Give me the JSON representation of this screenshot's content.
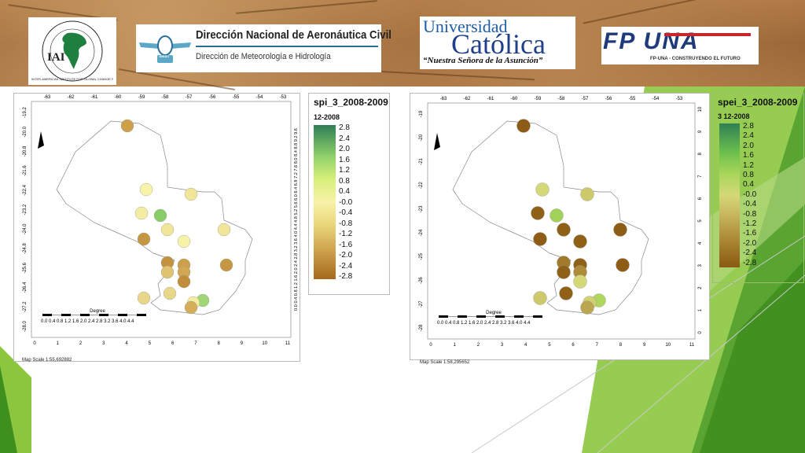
{
  "header": {
    "iai": {
      "letters": "IAI",
      "ring_text": "INTER-AMERICAN INSTITUTE FOR GLOBAL CHANGE RESEARCH"
    },
    "dinac": {
      "title": "Dirección Nacional de Aeronáutica Civil",
      "subtitle": "Dirección de Meteorología e Hidrología",
      "badge": "DINAC"
    },
    "ucat": {
      "line1": "Universidad",
      "line2": "Católica",
      "line3": "“Nuestra Señora de la Asunción”"
    },
    "fpuna": {
      "logo": "FP UNA",
      "tagline": "FP-UNA - CONSTRUYENDO EL FUTURO"
    }
  },
  "colors": {
    "green_dark": "#3f8f1f",
    "green_light": "#8cc63f",
    "legend_top": "#2f7f55",
    "legend_mid": "#f7f3a8",
    "legend_bottom": "#a56a1c"
  },
  "maps": [
    {
      "title": "spi_3_2008-2009",
      "subtitle": "12-2008",
      "legend_values": [
        "2.8",
        "2.4",
        "2.0",
        "1.6",
        "1.2",
        "0.8",
        "0.4",
        "-0.0",
        "-0.4",
        "-0.8",
        "-1.2",
        "-1.6",
        "-2.0",
        "-2.4",
        "-2.8"
      ],
      "top_ticks": [
        "-63",
        "-62",
        "-61",
        "-60",
        "-59",
        "-58",
        "-57",
        "-56",
        "-55",
        "-54",
        "-53"
      ],
      "left_ticks": [
        "-19.2",
        "-20.0",
        "-20.8",
        "-21.6",
        "-22.4",
        "-23.2",
        "-24.0",
        "-24.8",
        "-25.6",
        "-26.4",
        "-27.2",
        "-28.0"
      ],
      "right_ticks": "0.0 0.4 0.8 1.2 1.6 2.0 2.4 2.8 3.2 3.6 4.0 4.4 4.8 5.2 5.6 6.0 6.4 6.8 7.2 7.6 8.0 8.4 8.8 9.2 9.6",
      "bottom_ticks": [
        "0",
        "1",
        "2",
        "3",
        "4",
        "5",
        "6",
        "7",
        "8",
        "9",
        "10",
        "11"
      ],
      "scale_label": "Degree",
      "scale_ticks": "0.0 0.4 0.8 1.2 1.6 2.0 2.4 2.8 3.2 3.6 4.0 4.4",
      "map_scale": "Map Scale 1:55,692882",
      "points": [
        {
          "lon": -59.6,
          "lat": -19.5,
          "v": -1.6
        },
        {
          "lon": -58.8,
          "lat": -22.2,
          "v": -0.4
        },
        {
          "lon": -56.9,
          "lat": -22.4,
          "v": -0.6
        },
        {
          "lon": -59.0,
          "lat": -23.2,
          "v": -0.5
        },
        {
          "lon": -58.2,
          "lat": -23.3,
          "v": 0.9
        },
        {
          "lon": -57.9,
          "lat": -23.9,
          "v": -0.6
        },
        {
          "lon": -55.5,
          "lat": -23.9,
          "v": -0.6
        },
        {
          "lon": -58.9,
          "lat": -24.3,
          "v": -1.8
        },
        {
          "lon": -57.2,
          "lat": -24.4,
          "v": -0.4
        },
        {
          "lon": -57.9,
          "lat": -25.3,
          "v": -1.9
        },
        {
          "lon": -57.2,
          "lat": -25.4,
          "v": -1.6
        },
        {
          "lon": -57.9,
          "lat": -25.7,
          "v": -1.1
        },
        {
          "lon": -57.2,
          "lat": -25.7,
          "v": -1.5
        },
        {
          "lon": -57.2,
          "lat": -26.1,
          "v": -2.0
        },
        {
          "lon": -55.4,
          "lat": -25.4,
          "v": -1.8
        },
        {
          "lon": -57.8,
          "lat": -26.6,
          "v": -0.8
        },
        {
          "lon": -58.9,
          "lat": -26.8,
          "v": -0.8
        },
        {
          "lon": -56.4,
          "lat": -26.9,
          "v": 0.6
        },
        {
          "lon": -56.8,
          "lat": -27.0,
          "v": -0.5
        },
        {
          "lon": -56.9,
          "lat": -27.2,
          "v": -1.4
        }
      ]
    },
    {
      "title": "spei_3_2008-2009",
      "subtitle": "3 12-2008",
      "legend_values": [
        "2.8",
        "2.4",
        "2.0",
        "1.6",
        "1.2",
        "0.8",
        "0.4",
        "-0.0",
        "-0.4",
        "-0.8",
        "-1.2",
        "-1.6",
        "-2.0",
        "-2.4",
        "-2.8"
      ],
      "top_ticks": [
        "-63",
        "-62",
        "-61",
        "-60",
        "-59",
        "-58",
        "-57",
        "-56",
        "-55",
        "-54",
        "-53"
      ],
      "left_ticks": [
        "-19",
        "-20",
        "-21",
        "-22",
        "-23",
        "-24",
        "-25",
        "-26",
        "-27",
        "-28"
      ],
      "right_ticks": [
        "10",
        "9",
        "8",
        "7",
        "6",
        "5",
        "4",
        "3",
        "2",
        "1",
        "0"
      ],
      "bottom_ticks": [
        "0",
        "1",
        "2",
        "3",
        "4",
        "5",
        "6",
        "7",
        "8",
        "9",
        "10",
        "11"
      ],
      "scale_label": "Degree",
      "scale_ticks": "0.0 0.4 0.8 1.2 1.6 2.0 2.4 2.8 3.2 3.6 4.0 4.4",
      "map_scale": "Map Scale 1:58,295652",
      "points": [
        {
          "lon": -59.6,
          "lat": -19.5,
          "v": -2.7
        },
        {
          "lon": -58.8,
          "lat": -22.2,
          "v": -0.4
        },
        {
          "lon": -56.9,
          "lat": -22.4,
          "v": -0.6
        },
        {
          "lon": -59.0,
          "lat": -23.2,
          "v": -2.6
        },
        {
          "lon": -58.2,
          "lat": -23.3,
          "v": 0.9
        },
        {
          "lon": -57.9,
          "lat": -23.9,
          "v": -2.6
        },
        {
          "lon": -55.5,
          "lat": -23.9,
          "v": -2.7
        },
        {
          "lon": -58.9,
          "lat": -24.3,
          "v": -2.7
        },
        {
          "lon": -57.2,
          "lat": -24.4,
          "v": -2.6
        },
        {
          "lon": -57.9,
          "lat": -25.3,
          "v": -1.9
        },
        {
          "lon": -57.2,
          "lat": -25.4,
          "v": -2.6
        },
        {
          "lon": -57.9,
          "lat": -25.7,
          "v": -2.6
        },
        {
          "lon": -57.2,
          "lat": -25.7,
          "v": -1.5
        },
        {
          "lon": -57.2,
          "lat": -26.1,
          "v": -0.4
        },
        {
          "lon": -55.4,
          "lat": -25.4,
          "v": -2.7
        },
        {
          "lon": -57.8,
          "lat": -26.6,
          "v": -2.6
        },
        {
          "lon": -58.9,
          "lat": -26.8,
          "v": -0.6
        },
        {
          "lon": -56.4,
          "lat": -26.9,
          "v": 0.6
        },
        {
          "lon": -56.8,
          "lat": -27.0,
          "v": -0.5
        },
        {
          "lon": -56.9,
          "lat": -27.2,
          "v": -1.1
        }
      ]
    }
  ]
}
